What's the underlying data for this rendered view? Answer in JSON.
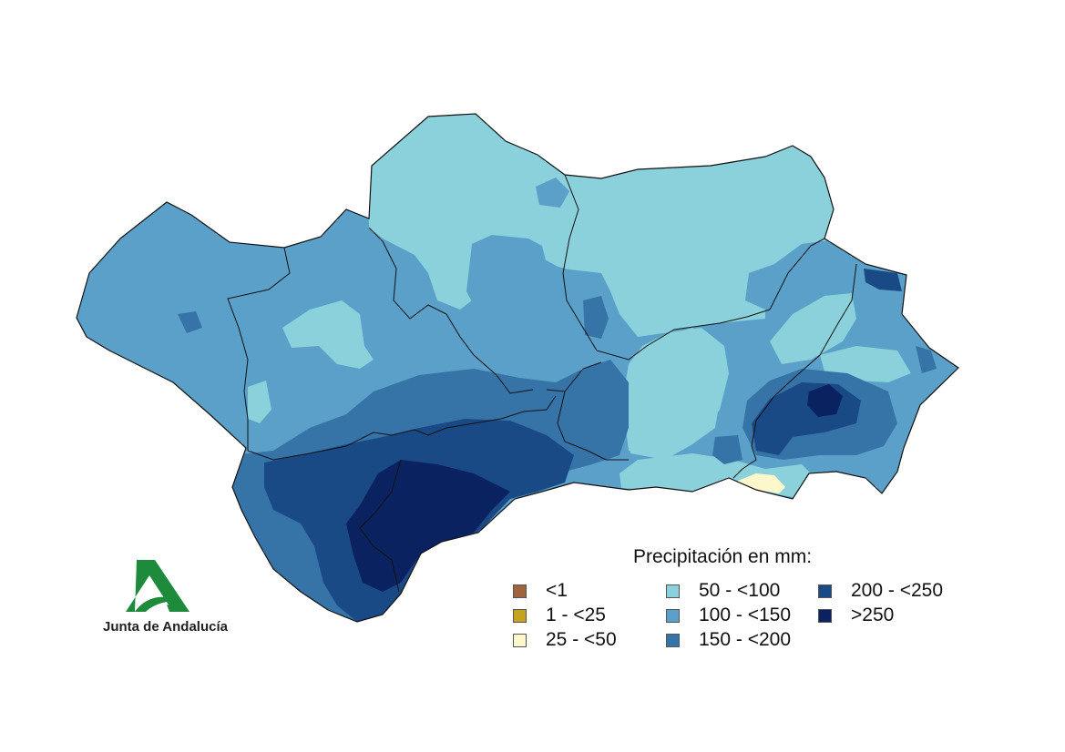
{
  "legend": {
    "title": "Precipitación en mm:",
    "classes": [
      {
        "label": "<1",
        "color": "#a0643c"
      },
      {
        "label": "1 - <25",
        "color": "#c4a31e"
      },
      {
        "label": "25 - <50",
        "color": "#fdf8cc"
      },
      {
        "label": "50 - <100",
        "color": "#8ad1dc"
      },
      {
        "label": "100 - <150",
        "color": "#5aa0c8"
      },
      {
        "label": "150 - <200",
        "color": "#3674a8"
      },
      {
        "label": "200 - <250",
        "color": "#1a4a86"
      },
      {
        "label": ">250",
        "color": "#0b2260"
      }
    ]
  },
  "logo": {
    "text": "Junta de Andalucía",
    "color": "#1e8a3c"
  }
}
